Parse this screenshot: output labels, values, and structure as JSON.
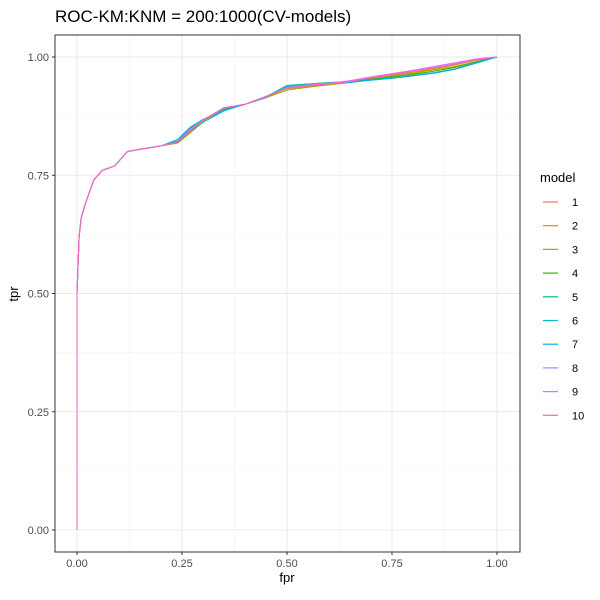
{
  "chart_data": {
    "type": "line",
    "title": "ROC-KM:KNM = 200:1000(CV-models)",
    "xlabel": "fpr",
    "ylabel": "tpr",
    "xlim": [
      0,
      1
    ],
    "ylim": [
      0,
      1
    ],
    "x_ticks": [
      "0.00",
      "0.25",
      "0.50",
      "0.75",
      "1.00"
    ],
    "y_ticks": [
      "0.00",
      "0.25",
      "0.50",
      "0.75",
      "1.00"
    ],
    "grid": true,
    "legend": {
      "title": "model",
      "position": "right"
    },
    "series": [
      {
        "name": "1",
        "color": "#F8766D",
        "x": [
          0,
          0,
          0.005,
          0.01,
          0.02,
          0.04,
          0.06,
          0.09,
          0.12,
          0.15,
          0.2,
          0.24,
          0.27,
          0.3,
          0.35,
          0.4,
          0.45,
          0.5,
          0.55,
          0.6,
          0.65,
          0.7,
          0.75,
          0.8,
          0.85,
          0.9,
          0.95,
          1
        ],
        "y": [
          0,
          0.5,
          0.62,
          0.66,
          0.69,
          0.74,
          0.76,
          0.77,
          0.8,
          0.805,
          0.812,
          0.82,
          0.845,
          0.865,
          0.89,
          0.9,
          0.915,
          0.935,
          0.938,
          0.942,
          0.946,
          0.952,
          0.958,
          0.964,
          0.97,
          0.978,
          0.99,
          1
        ]
      },
      {
        "name": "2",
        "color": "#D89000",
        "x": [
          0,
          0,
          0.005,
          0.01,
          0.02,
          0.04,
          0.06,
          0.09,
          0.12,
          0.15,
          0.2,
          0.24,
          0.27,
          0.3,
          0.35,
          0.4,
          0.45,
          0.5,
          0.55,
          0.6,
          0.65,
          0.7,
          0.75,
          0.8,
          0.85,
          0.9,
          0.95,
          1
        ],
        "y": [
          0,
          0.5,
          0.62,
          0.66,
          0.69,
          0.74,
          0.76,
          0.77,
          0.8,
          0.805,
          0.812,
          0.818,
          0.84,
          0.862,
          0.888,
          0.9,
          0.915,
          0.933,
          0.937,
          0.942,
          0.947,
          0.955,
          0.962,
          0.968,
          0.975,
          0.983,
          0.993,
          1
        ]
      },
      {
        "name": "3",
        "color": "#A3A500",
        "x": [
          0,
          0,
          0.005,
          0.01,
          0.02,
          0.04,
          0.06,
          0.09,
          0.12,
          0.15,
          0.2,
          0.24,
          0.27,
          0.3,
          0.35,
          0.4,
          0.45,
          0.5,
          0.55,
          0.6,
          0.65,
          0.7,
          0.75,
          0.8,
          0.85,
          0.9,
          0.95,
          1
        ],
        "y": [
          0,
          0.5,
          0.62,
          0.66,
          0.69,
          0.74,
          0.76,
          0.77,
          0.8,
          0.805,
          0.812,
          0.82,
          0.845,
          0.865,
          0.89,
          0.9,
          0.914,
          0.93,
          0.936,
          0.941,
          0.946,
          0.954,
          0.96,
          0.966,
          0.973,
          0.98,
          0.99,
          1
        ]
      },
      {
        "name": "4",
        "color": "#39B600",
        "x": [
          0,
          0,
          0.005,
          0.01,
          0.02,
          0.04,
          0.06,
          0.09,
          0.12,
          0.15,
          0.2,
          0.24,
          0.27,
          0.3,
          0.35,
          0.4,
          0.45,
          0.5,
          0.55,
          0.6,
          0.65,
          0.7,
          0.75,
          0.8,
          0.85,
          0.9,
          0.95,
          1
        ],
        "y": [
          0,
          0.5,
          0.62,
          0.66,
          0.69,
          0.74,
          0.76,
          0.77,
          0.8,
          0.805,
          0.812,
          0.822,
          0.848,
          0.866,
          0.889,
          0.9,
          0.915,
          0.935,
          0.94,
          0.944,
          0.947,
          0.953,
          0.958,
          0.963,
          0.97,
          0.978,
          0.99,
          1
        ]
      },
      {
        "name": "5",
        "color": "#00BF7D",
        "x": [
          0,
          0,
          0.005,
          0.01,
          0.02,
          0.04,
          0.06,
          0.09,
          0.12,
          0.15,
          0.2,
          0.24,
          0.27,
          0.3,
          0.35,
          0.4,
          0.45,
          0.5,
          0.55,
          0.6,
          0.65,
          0.7,
          0.75,
          0.8,
          0.85,
          0.9,
          0.95,
          1
        ],
        "y": [
          0,
          0.5,
          0.62,
          0.66,
          0.69,
          0.74,
          0.76,
          0.77,
          0.8,
          0.805,
          0.812,
          0.823,
          0.85,
          0.868,
          0.888,
          0.9,
          0.916,
          0.94,
          0.943,
          0.946,
          0.948,
          0.952,
          0.956,
          0.961,
          0.967,
          0.975,
          0.988,
          1
        ]
      },
      {
        "name": "6",
        "color": "#00BFC4",
        "x": [
          0,
          0,
          0.005,
          0.01,
          0.02,
          0.04,
          0.06,
          0.09,
          0.12,
          0.15,
          0.2,
          0.24,
          0.27,
          0.3,
          0.35,
          0.4,
          0.45,
          0.5,
          0.55,
          0.6,
          0.65,
          0.7,
          0.75,
          0.8,
          0.85,
          0.9,
          0.95,
          1
        ],
        "y": [
          0,
          0.5,
          0.62,
          0.66,
          0.69,
          0.74,
          0.76,
          0.77,
          0.8,
          0.805,
          0.812,
          0.82,
          0.843,
          0.862,
          0.886,
          0.9,
          0.914,
          0.937,
          0.941,
          0.944,
          0.946,
          0.951,
          0.955,
          0.96,
          0.966,
          0.974,
          0.987,
          1
        ]
      },
      {
        "name": "7",
        "color": "#00B0F6",
        "x": [
          0,
          0,
          0.005,
          0.01,
          0.02,
          0.04,
          0.06,
          0.09,
          0.12,
          0.15,
          0.2,
          0.24,
          0.27,
          0.3,
          0.35,
          0.4,
          0.45,
          0.5,
          0.55,
          0.6,
          0.65,
          0.7,
          0.75,
          0.8,
          0.85,
          0.9,
          0.95,
          1
        ],
        "y": [
          0,
          0.5,
          0.62,
          0.66,
          0.69,
          0.74,
          0.76,
          0.77,
          0.8,
          0.805,
          0.812,
          0.826,
          0.852,
          0.868,
          0.887,
          0.9,
          0.916,
          0.938,
          0.941,
          0.945,
          0.947,
          0.951,
          0.955,
          0.96,
          0.966,
          0.974,
          0.987,
          1
        ]
      },
      {
        "name": "8",
        "color": "#9590FF",
        "x": [
          0,
          0,
          0.005,
          0.01,
          0.02,
          0.04,
          0.06,
          0.09,
          0.12,
          0.15,
          0.2,
          0.24,
          0.27,
          0.3,
          0.35,
          0.4,
          0.45,
          0.5,
          0.55,
          0.6,
          0.65,
          0.7,
          0.75,
          0.8,
          0.85,
          0.9,
          0.95,
          1
        ],
        "y": [
          0,
          0.5,
          0.62,
          0.66,
          0.69,
          0.74,
          0.76,
          0.77,
          0.8,
          0.805,
          0.812,
          0.82,
          0.846,
          0.866,
          0.892,
          0.9,
          0.916,
          0.936,
          0.941,
          0.945,
          0.949,
          0.957,
          0.964,
          0.971,
          0.978,
          0.986,
          0.995,
          1
        ]
      },
      {
        "name": "9",
        "color": "#E76BF3",
        "x": [
          0,
          0,
          0.005,
          0.01,
          0.02,
          0.04,
          0.06,
          0.09,
          0.12,
          0.15,
          0.2,
          0.24,
          0.27,
          0.3,
          0.35,
          0.4,
          0.45,
          0.5,
          0.55,
          0.6,
          0.65,
          0.7,
          0.75,
          0.8,
          0.85,
          0.9,
          0.95,
          1
        ],
        "y": [
          0,
          0.5,
          0.62,
          0.66,
          0.69,
          0.74,
          0.76,
          0.77,
          0.8,
          0.805,
          0.812,
          0.82,
          0.848,
          0.867,
          0.893,
          0.9,
          0.917,
          0.934,
          0.94,
          0.944,
          0.95,
          0.958,
          0.965,
          0.972,
          0.98,
          0.988,
          0.996,
          1
        ]
      },
      {
        "name": "10",
        "color": "#FF62BC",
        "x": [
          0,
          0,
          0.005,
          0.01,
          0.02,
          0.04,
          0.06,
          0.09,
          0.12,
          0.15,
          0.2,
          0.24,
          0.27,
          0.3,
          0.35,
          0.4,
          0.45,
          0.5,
          0.55,
          0.6,
          0.65,
          0.7,
          0.75,
          0.8,
          0.85,
          0.9,
          0.95,
          1
        ],
        "y": [
          0,
          0.5,
          0.62,
          0.66,
          0.69,
          0.74,
          0.76,
          0.77,
          0.8,
          0.805,
          0.812,
          0.82,
          0.846,
          0.866,
          0.892,
          0.9,
          0.916,
          0.934,
          0.939,
          0.943,
          0.948,
          0.956,
          0.963,
          0.97,
          0.977,
          0.985,
          0.994,
          1
        ]
      }
    ]
  }
}
